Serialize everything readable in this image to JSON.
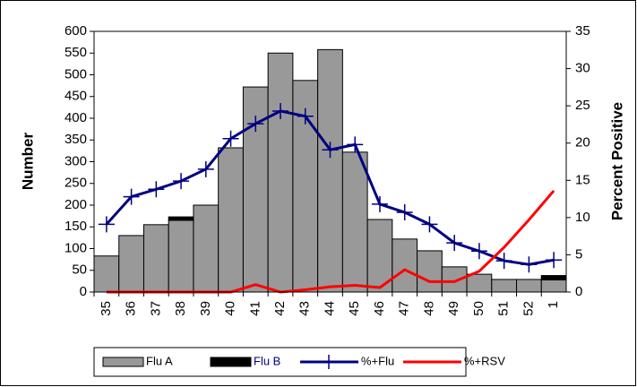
{
  "chart_data": {
    "type": "combo",
    "y_label": "Number",
    "y2_label": "Percent Positive",
    "categories": [
      "35",
      "36",
      "37",
      "38",
      "39",
      "40",
      "41",
      "42",
      "43",
      "44",
      "45",
      "46",
      "47",
      "48",
      "49",
      "50",
      "51",
      "52",
      "1"
    ],
    "ylim": [
      0,
      600
    ],
    "yticks": [
      0,
      50,
      100,
      150,
      200,
      250,
      300,
      350,
      400,
      450,
      500,
      550,
      600
    ],
    "y2lim": [
      0,
      35
    ],
    "y2ticks": [
      0,
      5,
      10,
      15,
      20,
      25,
      30,
      35
    ],
    "series": [
      {
        "name": "Flu A",
        "type": "bar",
        "color": "#999999",
        "values": [
          83,
          130,
          155,
          165,
          200,
          332,
          472,
          550,
          487,
          558,
          322,
          167,
          122,
          95,
          58,
          41,
          29,
          29,
          28
        ]
      },
      {
        "name": "Flu B",
        "type": "bar",
        "color": "#000000",
        "values": [
          0,
          0,
          0,
          8,
          0,
          0,
          0,
          0,
          0,
          0,
          0,
          0,
          0,
          0,
          0,
          0,
          0,
          0,
          10
        ]
      },
      {
        "name": "%+Flu",
        "type": "line",
        "axis": "y2",
        "color": "#000080",
        "values": [
          9.1,
          12.8,
          13.8,
          14.9,
          16.5,
          20.6,
          22.6,
          24.3,
          23.6,
          19.1,
          19.8,
          11.8,
          10.7,
          9.1,
          6.6,
          5.5,
          4.2,
          3.7,
          4.3
        ]
      },
      {
        "name": "%+RSV",
        "type": "line",
        "axis": "y2",
        "color": "#ff0000",
        "values": [
          0,
          0,
          0,
          0,
          0,
          0,
          1.0,
          0,
          0.3,
          0.7,
          0.9,
          0.6,
          3.0,
          1.4,
          1.4,
          2.8,
          6.0,
          9.7,
          13.6
        ]
      }
    ]
  }
}
